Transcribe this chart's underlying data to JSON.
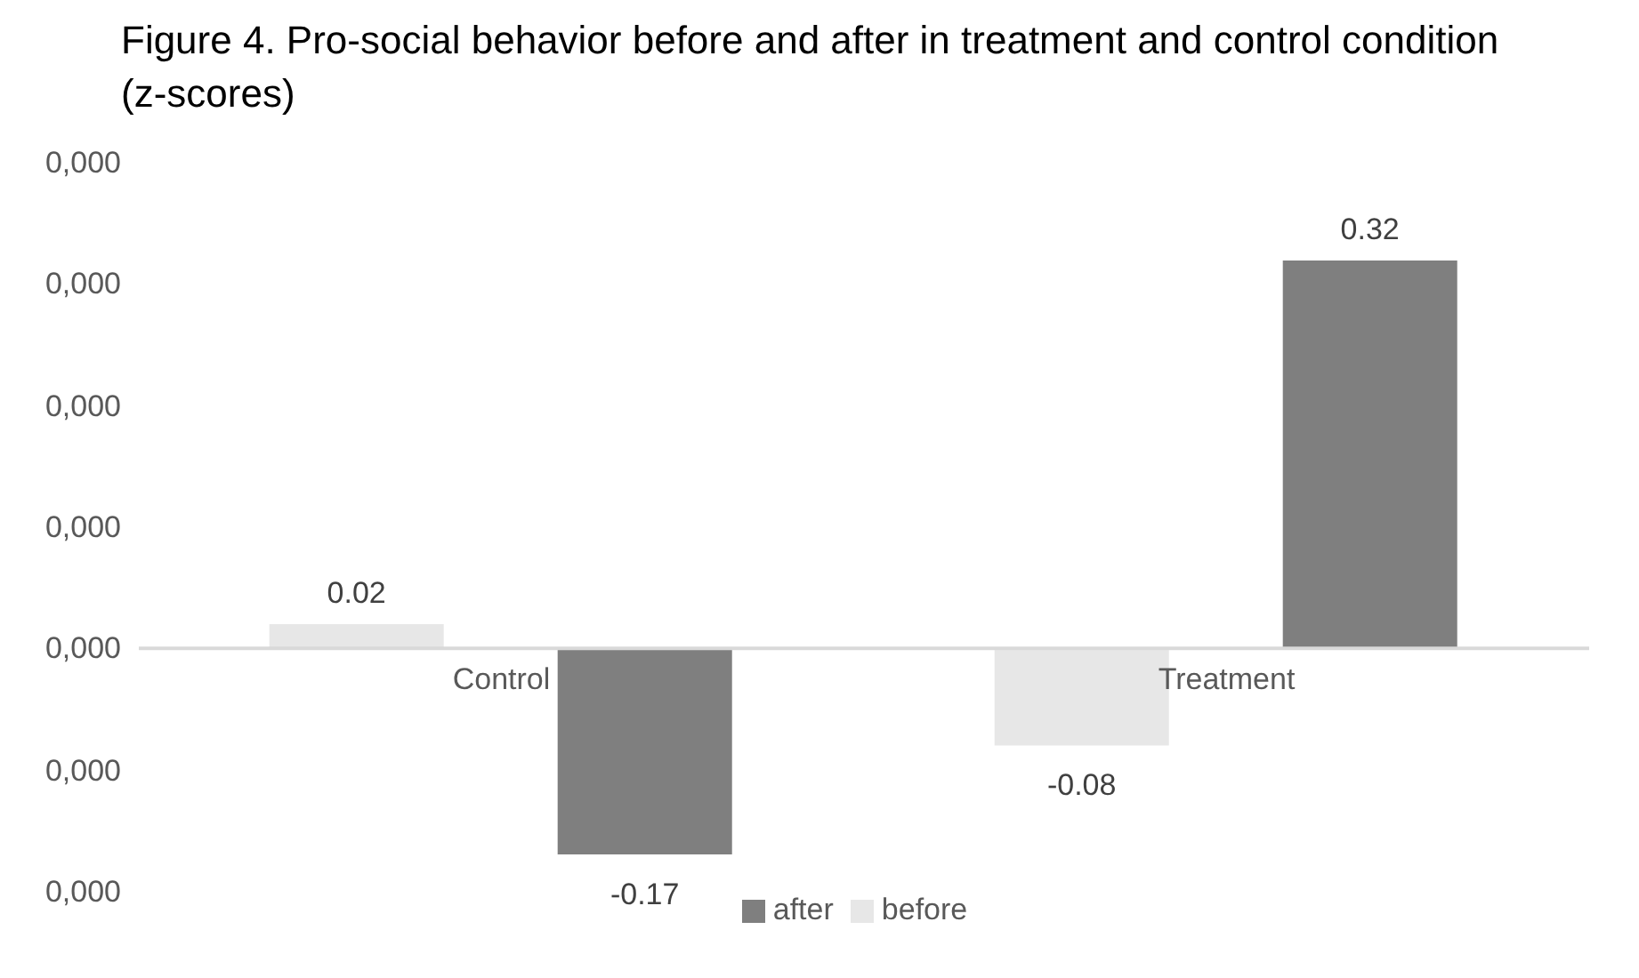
{
  "chart_data": {
    "type": "bar",
    "title": "Figure 4. Pro-social behavior before and after in treatment and control condition (z-scores)",
    "categories": [
      "Control",
      "Treatment"
    ],
    "series": [
      {
        "name": "before",
        "color": "#e7e7e7",
        "values": [
          0.02,
          -0.08
        ]
      },
      {
        "name": "after",
        "color": "#7f7f7f",
        "values": [
          -0.17,
          0.32
        ]
      }
    ],
    "annotations": [
      "0,000",
      "0,000",
      "0,000",
      "0,000",
      "0,000",
      "0,000",
      "0,000"
    ],
    "data_labels": true,
    "legend": "bottom",
    "grid": false
  }
}
